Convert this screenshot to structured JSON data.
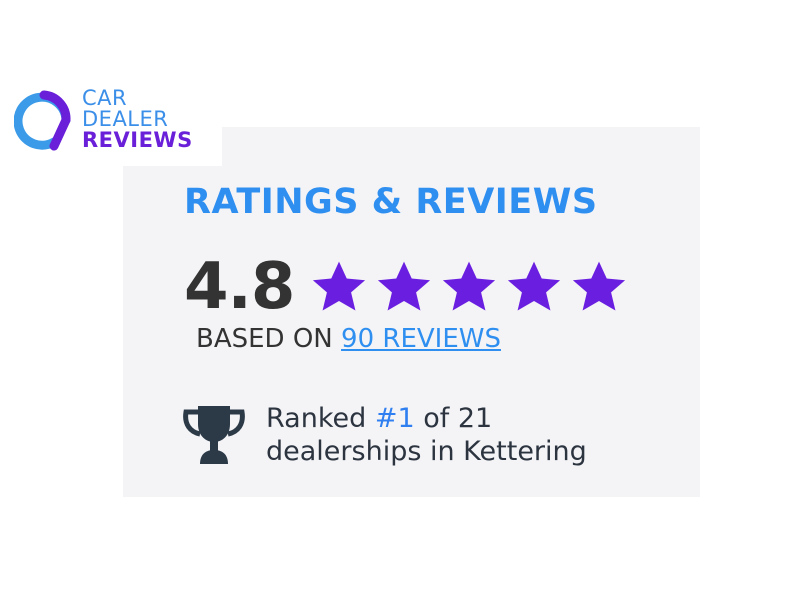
{
  "logo": {
    "line1": "CAR",
    "line2": "DEALER",
    "line3": "REVIEWS"
  },
  "title": "RATINGS & REVIEWS",
  "rating": {
    "score": "4.8",
    "stars": 5,
    "star_color": "#6a1fe0"
  },
  "based": {
    "prefix": "BASED ON",
    "link": "90 REVIEWS"
  },
  "rank": {
    "prefix": "Ranked",
    "rank": "#1",
    "suffix": "of 21",
    "line2": "dealerships in Kettering"
  },
  "colors": {
    "accent": "#2f8ff0",
    "purple": "#6a1fe0",
    "panel": "#f4f4f7"
  }
}
